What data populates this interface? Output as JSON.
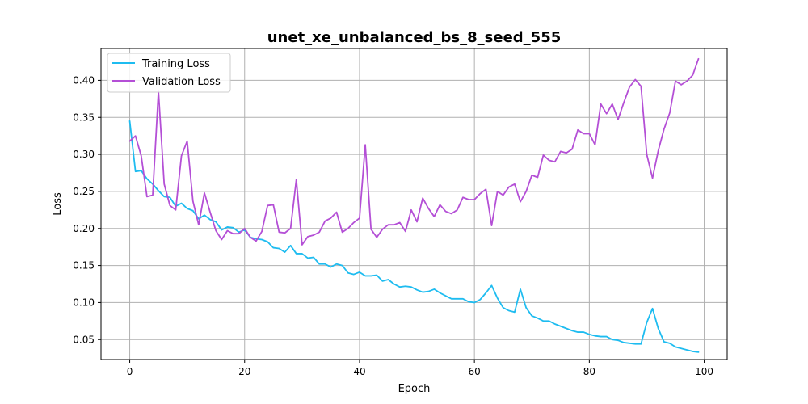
{
  "chart_data": {
    "type": "line",
    "title": "unet_xe_unbalanced_bs_8_seed_555",
    "xlabel": "Epoch",
    "ylabel": "Loss",
    "xlim": [
      -5,
      104
    ],
    "ylim": [
      0.023,
      0.443
    ],
    "xticks": [
      0,
      20,
      40,
      60,
      80,
      100
    ],
    "yticks": [
      0.05,
      0.1,
      0.15,
      0.2,
      0.25,
      0.3,
      0.35,
      0.4
    ],
    "ytick_labels": [
      "0.05",
      "0.10",
      "0.15",
      "0.20",
      "0.25",
      "0.30",
      "0.35",
      "0.40"
    ],
    "grid": true,
    "legend_position": "top-left",
    "series": [
      {
        "name": "Training Loss",
        "color": "#1ebcf0",
        "values": [
          0.345,
          0.277,
          0.278,
          0.267,
          0.26,
          0.251,
          0.243,
          0.242,
          0.23,
          0.234,
          0.227,
          0.224,
          0.213,
          0.218,
          0.212,
          0.209,
          0.198,
          0.202,
          0.201,
          0.195,
          0.198,
          0.188,
          0.186,
          0.185,
          0.182,
          0.174,
          0.173,
          0.168,
          0.177,
          0.166,
          0.166,
          0.16,
          0.161,
          0.152,
          0.152,
          0.148,
          0.152,
          0.15,
          0.14,
          0.138,
          0.141,
          0.136,
          0.136,
          0.137,
          0.129,
          0.131,
          0.125,
          0.121,
          0.122,
          0.121,
          0.117,
          0.114,
          0.115,
          0.118,
          0.113,
          0.109,
          0.105,
          0.105,
          0.105,
          0.101,
          0.1,
          0.104,
          0.113,
          0.123,
          0.106,
          0.093,
          0.089,
          0.087,
          0.118,
          0.093,
          0.082,
          0.079,
          0.075,
          0.075,
          0.071,
          0.068,
          0.065,
          0.062,
          0.06,
          0.06,
          0.057,
          0.055,
          0.054,
          0.054,
          0.05,
          0.049,
          0.046,
          0.045,
          0.044,
          0.044,
          0.073,
          0.092,
          0.065,
          0.047,
          0.045,
          0.04,
          0.038,
          0.036,
          0.034,
          0.033
        ]
      },
      {
        "name": "Validation Loss",
        "color": "#b44fd6",
        "values": [
          0.318,
          0.325,
          0.298,
          0.243,
          0.245,
          0.385,
          0.26,
          0.231,
          0.225,
          0.298,
          0.318,
          0.237,
          0.205,
          0.248,
          0.222,
          0.197,
          0.185,
          0.197,
          0.193,
          0.193,
          0.2,
          0.188,
          0.183,
          0.196,
          0.231,
          0.232,
          0.195,
          0.194,
          0.2,
          0.266,
          0.178,
          0.189,
          0.191,
          0.195,
          0.21,
          0.214,
          0.222,
          0.195,
          0.2,
          0.208,
          0.214,
          0.313,
          0.199,
          0.188,
          0.199,
          0.205,
          0.205,
          0.208,
          0.196,
          0.225,
          0.209,
          0.241,
          0.227,
          0.216,
          0.232,
          0.223,
          0.22,
          0.225,
          0.242,
          0.239,
          0.239,
          0.247,
          0.253,
          0.204,
          0.25,
          0.245,
          0.256,
          0.26,
          0.236,
          0.25,
          0.272,
          0.269,
          0.299,
          0.292,
          0.29,
          0.304,
          0.302,
          0.307,
          0.333,
          0.328,
          0.328,
          0.313,
          0.368,
          0.355,
          0.368,
          0.347,
          0.37,
          0.391,
          0.401,
          0.392,
          0.3,
          0.268,
          0.305,
          0.334,
          0.356,
          0.399,
          0.394,
          0.399,
          0.407,
          0.429
        ]
      }
    ]
  }
}
